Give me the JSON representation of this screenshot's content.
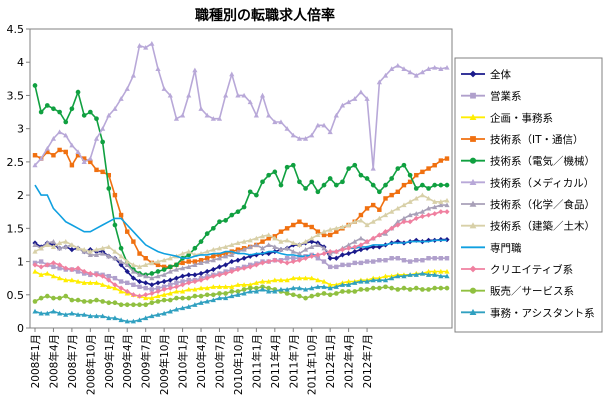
{
  "chart_data": {
    "type": "line",
    "title": "職種別の転職求人倍率",
    "xlabel": "",
    "ylabel": "",
    "ylim": [
      0,
      4.5
    ],
    "y_ticks": [
      "0",
      "0.5",
      "1",
      "1.5",
      "2",
      "2.5",
      "3",
      "3.5",
      "4",
      "4.5"
    ],
    "grid": false,
    "legend_position": "right",
    "x_tick_labels": [
      "2008年1月",
      "2008年4月",
      "2008年7月",
      "2008年10月",
      "2009年1月",
      "2009年4月",
      "2009年7月",
      "2009年10月",
      "2010年1月",
      "2010年4月",
      "2010年7月",
      "2010年10月",
      "2011年1月",
      "2011年4月",
      "2011年7月",
      "2011年10月",
      "2012年1月",
      "2012年4月",
      "2012年7月"
    ],
    "series": [
      {
        "name": "全体",
        "color": "#1a1a8c",
        "marker": "diamond",
        "values": [
          1.28,
          1.22,
          1.28,
          1.25,
          1.2,
          1.22,
          1.18,
          1.2,
          1.15,
          1.18,
          1.15,
          1.15,
          1.08,
          1.05,
          0.95,
          0.85,
          0.75,
          0.7,
          0.68,
          0.65,
          0.68,
          0.7,
          0.72,
          0.75,
          0.78,
          0.8,
          0.8,
          0.82,
          0.85,
          0.88,
          0.92,
          0.95,
          1.0,
          1.02,
          1.05,
          1.08,
          1.1,
          1.12,
          1.12,
          1.15,
          1.18,
          1.2,
          1.25,
          1.25,
          1.28,
          1.3,
          1.28,
          1.22,
          1.05,
          1.05,
          1.1,
          1.12,
          1.15,
          1.18,
          1.2,
          1.22,
          1.22,
          1.25,
          1.28,
          1.3,
          1.28,
          1.3,
          1.32,
          1.3,
          1.32,
          1.32,
          1.33,
          1.33
        ]
      },
      {
        "name": "営業系",
        "color": "#b0a0cc",
        "marker": "square",
        "values": [
          0.98,
          1.0,
          0.95,
          0.92,
          0.9,
          0.88,
          0.88,
          0.85,
          0.82,
          0.8,
          0.82,
          0.8,
          0.78,
          0.75,
          0.7,
          0.68,
          0.65,
          0.62,
          0.6,
          0.58,
          0.6,
          0.62,
          0.65,
          0.68,
          0.7,
          0.72,
          0.72,
          0.75,
          0.78,
          0.8,
          0.82,
          0.85,
          0.88,
          0.9,
          0.92,
          0.95,
          0.97,
          1.0,
          1.0,
          1.02,
          1.02,
          1.05,
          1.05,
          1.05,
          1.08,
          1.1,
          1.05,
          1.0,
          0.92,
          0.92,
          0.95,
          0.95,
          0.98,
          0.98,
          1.0,
          1.0,
          1.02,
          1.02,
          1.05,
          1.05,
          1.02,
          1.0,
          1.02,
          1.02,
          1.05,
          1.05,
          1.05,
          1.05
        ]
      },
      {
        "name": "企画・事務系",
        "color": "#ffee00",
        "marker": "triangle",
        "values": [
          0.85,
          0.8,
          0.82,
          0.78,
          0.75,
          0.72,
          0.72,
          0.7,
          0.68,
          0.68,
          0.68,
          0.65,
          0.62,
          0.6,
          0.55,
          0.52,
          0.5,
          0.48,
          0.45,
          0.45,
          0.48,
          0.5,
          0.52,
          0.55,
          0.55,
          0.58,
          0.58,
          0.6,
          0.6,
          0.62,
          0.62,
          0.62,
          0.62,
          0.65,
          0.65,
          0.65,
          0.68,
          0.7,
          0.7,
          0.72,
          0.72,
          0.72,
          0.75,
          0.75,
          0.75,
          0.75,
          0.72,
          0.7,
          0.65,
          0.65,
          0.68,
          0.7,
          0.7,
          0.72,
          0.72,
          0.75,
          0.75,
          0.78,
          0.78,
          0.8,
          0.8,
          0.8,
          0.82,
          0.82,
          0.85,
          0.85,
          0.85,
          0.85
        ]
      },
      {
        "name": "技術系（IT・通信）",
        "color": "#f07010",
        "marker": "square",
        "values": [
          2.6,
          2.55,
          2.65,
          2.6,
          2.68,
          2.65,
          2.45,
          2.6,
          2.55,
          2.5,
          2.38,
          2.35,
          2.3,
          2.0,
          1.7,
          1.45,
          1.3,
          1.12,
          1.05,
          0.98,
          0.95,
          0.92,
          0.92,
          0.95,
          0.98,
          1.0,
          1.0,
          1.02,
          1.05,
          1.08,
          1.1,
          1.12,
          1.15,
          1.18,
          1.2,
          1.22,
          1.25,
          1.3,
          1.35,
          1.38,
          1.45,
          1.5,
          1.55,
          1.6,
          1.55,
          1.52,
          1.45,
          1.4,
          1.4,
          1.45,
          1.5,
          1.55,
          1.6,
          1.7,
          1.8,
          1.85,
          1.78,
          1.95,
          2.0,
          2.05,
          2.15,
          2.2,
          2.3,
          2.35,
          2.4,
          2.45,
          2.52,
          2.55
        ]
      },
      {
        "name": "技術系（電気／機械）",
        "color": "#10a040",
        "marker": "circle",
        "values": [
          3.65,
          3.25,
          3.35,
          3.3,
          3.25,
          3.1,
          3.3,
          3.55,
          3.2,
          3.25,
          3.15,
          2.8,
          2.1,
          1.55,
          1.2,
          0.98,
          0.88,
          0.82,
          0.8,
          0.82,
          0.85,
          0.88,
          0.92,
          0.95,
          1.05,
          1.1,
          1.2,
          1.3,
          1.42,
          1.5,
          1.6,
          1.62,
          1.7,
          1.75,
          1.82,
          2.05,
          2.0,
          2.2,
          2.3,
          2.35,
          2.15,
          2.42,
          2.45,
          2.2,
          2.1,
          2.2,
          2.05,
          2.15,
          2.25,
          2.15,
          2.2,
          2.4,
          2.45,
          2.3,
          2.25,
          2.15,
          2.05,
          2.15,
          2.25,
          2.4,
          2.45,
          2.3,
          2.1,
          2.15,
          2.1,
          2.15,
          2.15,
          2.15
        ]
      },
      {
        "name": "技術系（メディカル）",
        "color": "#b8a8d8",
        "marker": "triangle",
        "values": [
          2.45,
          2.55,
          2.7,
          2.85,
          2.95,
          2.9,
          2.75,
          2.65,
          2.5,
          2.55,
          2.85,
          3.0,
          3.2,
          3.3,
          3.45,
          3.6,
          3.8,
          4.25,
          4.22,
          4.28,
          3.9,
          3.6,
          3.5,
          3.15,
          3.2,
          3.5,
          3.88,
          3.3,
          3.2,
          3.15,
          3.15,
          3.5,
          3.82,
          3.5,
          3.5,
          3.4,
          3.2,
          3.5,
          3.2,
          3.1,
          3.1,
          3.0,
          2.9,
          2.85,
          2.85,
          2.9,
          3.05,
          3.05,
          2.95,
          3.2,
          3.35,
          3.4,
          3.45,
          3.55,
          3.45,
          2.4,
          3.7,
          3.8,
          3.9,
          3.95,
          3.9,
          3.85,
          3.8,
          3.85,
          3.9,
          3.92,
          3.9,
          3.92
        ]
      },
      {
        "name": "技術系（化学／食品）",
        "color": "#a8a0b8",
        "marker": "triangle",
        "values": [
          1.25,
          1.2,
          1.28,
          1.3,
          1.2,
          1.22,
          1.25,
          1.2,
          1.15,
          1.1,
          1.1,
          1.12,
          1.08,
          1.05,
          1.0,
          0.95,
          0.85,
          0.8,
          0.78,
          0.75,
          0.78,
          0.8,
          0.85,
          0.88,
          0.9,
          0.92,
          0.95,
          0.98,
          1.0,
          1.02,
          1.05,
          1.08,
          1.1,
          1.15,
          1.18,
          1.22,
          1.25,
          1.2,
          1.25,
          1.22,
          1.18,
          1.2,
          1.15,
          1.12,
          1.18,
          1.22,
          1.25,
          1.2,
          1.12,
          1.15,
          1.2,
          1.25,
          1.3,
          1.35,
          1.3,
          1.35,
          1.4,
          1.42,
          1.5,
          1.6,
          1.65,
          1.7,
          1.72,
          1.75,
          1.8,
          1.82,
          1.85,
          1.85
        ]
      },
      {
        "name": "技術系（建築／土木）",
        "color": "#d8d0a8",
        "marker": "triangle",
        "values": [
          1.15,
          1.2,
          1.25,
          1.22,
          1.28,
          1.3,
          1.25,
          1.2,
          1.18,
          1.15,
          1.18,
          1.2,
          1.22,
          1.15,
          1.08,
          1.0,
          0.95,
          0.92,
          0.95,
          0.98,
          1.0,
          1.02,
          1.05,
          1.08,
          1.12,
          1.15,
          1.1,
          1.12,
          1.15,
          1.18,
          1.2,
          1.22,
          1.25,
          1.28,
          1.3,
          1.32,
          1.35,
          1.38,
          1.4,
          1.35,
          1.3,
          1.32,
          1.28,
          1.25,
          1.3,
          1.35,
          1.4,
          1.45,
          1.48,
          1.5,
          1.52,
          1.55,
          1.6,
          1.62,
          1.55,
          1.6,
          1.65,
          1.7,
          1.75,
          1.8,
          1.85,
          1.9,
          1.95,
          2.0,
          1.95,
          1.9,
          1.9,
          1.92
        ]
      },
      {
        "name": "専門職",
        "color": "#10a0e0",
        "marker": "none",
        "values": [
          2.15,
          2.0,
          2.0,
          1.8,
          1.7,
          1.6,
          1.55,
          1.5,
          1.45,
          1.45,
          1.5,
          1.55,
          1.6,
          1.65,
          1.65,
          1.55,
          1.45,
          1.35,
          1.25,
          1.2,
          1.15,
          1.12,
          1.1,
          1.08,
          1.05,
          1.05,
          1.08,
          1.1,
          1.1,
          1.12,
          1.12,
          1.15,
          1.15,
          1.12,
          1.12,
          1.1,
          1.12,
          1.12,
          1.15,
          1.15,
          1.12,
          1.1,
          1.1,
          1.08,
          1.08,
          1.1,
          1.1,
          1.12,
          1.15,
          1.15,
          1.18,
          1.2,
          1.2,
          1.22,
          1.22,
          1.25,
          1.25,
          1.25,
          1.28,
          1.28,
          1.28,
          1.3,
          1.3,
          1.3,
          1.3,
          1.32,
          1.32,
          1.32
        ]
      },
      {
        "name": "クリエイティブ系",
        "color": "#f080a0",
        "marker": "diamond",
        "values": [
          0.95,
          0.92,
          0.95,
          0.98,
          0.95,
          0.9,
          0.88,
          0.9,
          0.85,
          0.82,
          0.8,
          0.78,
          0.72,
          0.65,
          0.6,
          0.55,
          0.5,
          0.48,
          0.5,
          0.52,
          0.55,
          0.58,
          0.6,
          0.62,
          0.65,
          0.68,
          0.7,
          0.72,
          0.75,
          0.78,
          0.8,
          0.82,
          0.85,
          0.88,
          0.9,
          0.92,
          0.95,
          0.98,
          1.0,
          1.02,
          1.0,
          0.98,
          1.0,
          1.02,
          1.05,
          1.08,
          1.1,
          1.12,
          1.15,
          1.15,
          1.18,
          1.2,
          1.22,
          1.25,
          1.3,
          1.35,
          1.4,
          1.45,
          1.5,
          1.55,
          1.6,
          1.6,
          1.65,
          1.68,
          1.7,
          1.72,
          1.75,
          1.75
        ]
      },
      {
        "name": "販売／サービス系",
        "color": "#90c040",
        "marker": "circle",
        "values": [
          0.4,
          0.45,
          0.48,
          0.45,
          0.45,
          0.48,
          0.42,
          0.42,
          0.4,
          0.4,
          0.42,
          0.4,
          0.38,
          0.38,
          0.35,
          0.35,
          0.35,
          0.35,
          0.35,
          0.38,
          0.4,
          0.42,
          0.42,
          0.45,
          0.45,
          0.45,
          0.48,
          0.48,
          0.5,
          0.5,
          0.52,
          0.52,
          0.55,
          0.55,
          0.58,
          0.6,
          0.6,
          0.62,
          0.6,
          0.58,
          0.55,
          0.52,
          0.5,
          0.48,
          0.45,
          0.48,
          0.5,
          0.52,
          0.5,
          0.52,
          0.55,
          0.55,
          0.55,
          0.58,
          0.58,
          0.6,
          0.6,
          0.62,
          0.6,
          0.58,
          0.6,
          0.58,
          0.6,
          0.58,
          0.58,
          0.6,
          0.6,
          0.6
        ]
      },
      {
        "name": "事務・アシスタント系",
        "color": "#30a0c0",
        "marker": "triangle",
        "values": [
          0.25,
          0.22,
          0.22,
          0.25,
          0.22,
          0.2,
          0.22,
          0.2,
          0.2,
          0.18,
          0.18,
          0.18,
          0.15,
          0.15,
          0.12,
          0.1,
          0.1,
          0.12,
          0.15,
          0.18,
          0.2,
          0.22,
          0.25,
          0.28,
          0.3,
          0.32,
          0.35,
          0.38,
          0.4,
          0.42,
          0.45,
          0.45,
          0.48,
          0.5,
          0.52,
          0.55,
          0.55,
          0.58,
          0.55,
          0.55,
          0.58,
          0.58,
          0.6,
          0.6,
          0.58,
          0.6,
          0.62,
          0.62,
          0.6,
          0.62,
          0.65,
          0.65,
          0.68,
          0.7,
          0.7,
          0.72,
          0.72,
          0.72,
          0.75,
          0.78,
          0.78,
          0.8,
          0.8,
          0.82,
          0.8,
          0.8,
          0.78,
          0.78
        ]
      }
    ]
  }
}
